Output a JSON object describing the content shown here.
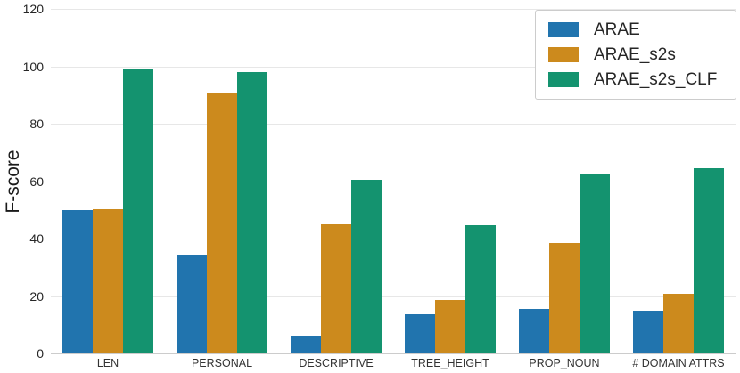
{
  "chart_data": {
    "type": "bar",
    "title": "",
    "xlabel": "",
    "ylabel": "F-score",
    "ylim": [
      0,
      120
    ],
    "yticks": [
      0,
      20,
      40,
      60,
      80,
      100,
      120
    ],
    "grid": "horizontal",
    "grid_color": "#e7e7e7",
    "axis_line_color": "#cccccc",
    "legend_position": "upper right",
    "categories": [
      "LEN",
      "PERSONAL",
      "DESCRIPTIVE",
      "TREE_HEIGHT",
      "PROP_NOUN",
      "# DOMAIN ATTRS"
    ],
    "series": [
      {
        "name": "ARAE",
        "color": "#2174ae",
        "values": [
          49.8,
          34.3,
          6.2,
          13.8,
          15.6,
          14.9
        ]
      },
      {
        "name": "ARAE_s2s",
        "color": "#cc8a1d",
        "values": [
          50.1,
          90.5,
          45.0,
          18.5,
          38.4,
          20.8
        ]
      },
      {
        "name": "ARAE_s2s_CLF",
        "color": "#14936f",
        "values": [
          98.9,
          98.0,
          60.5,
          44.6,
          62.6,
          64.6
        ]
      }
    ]
  }
}
